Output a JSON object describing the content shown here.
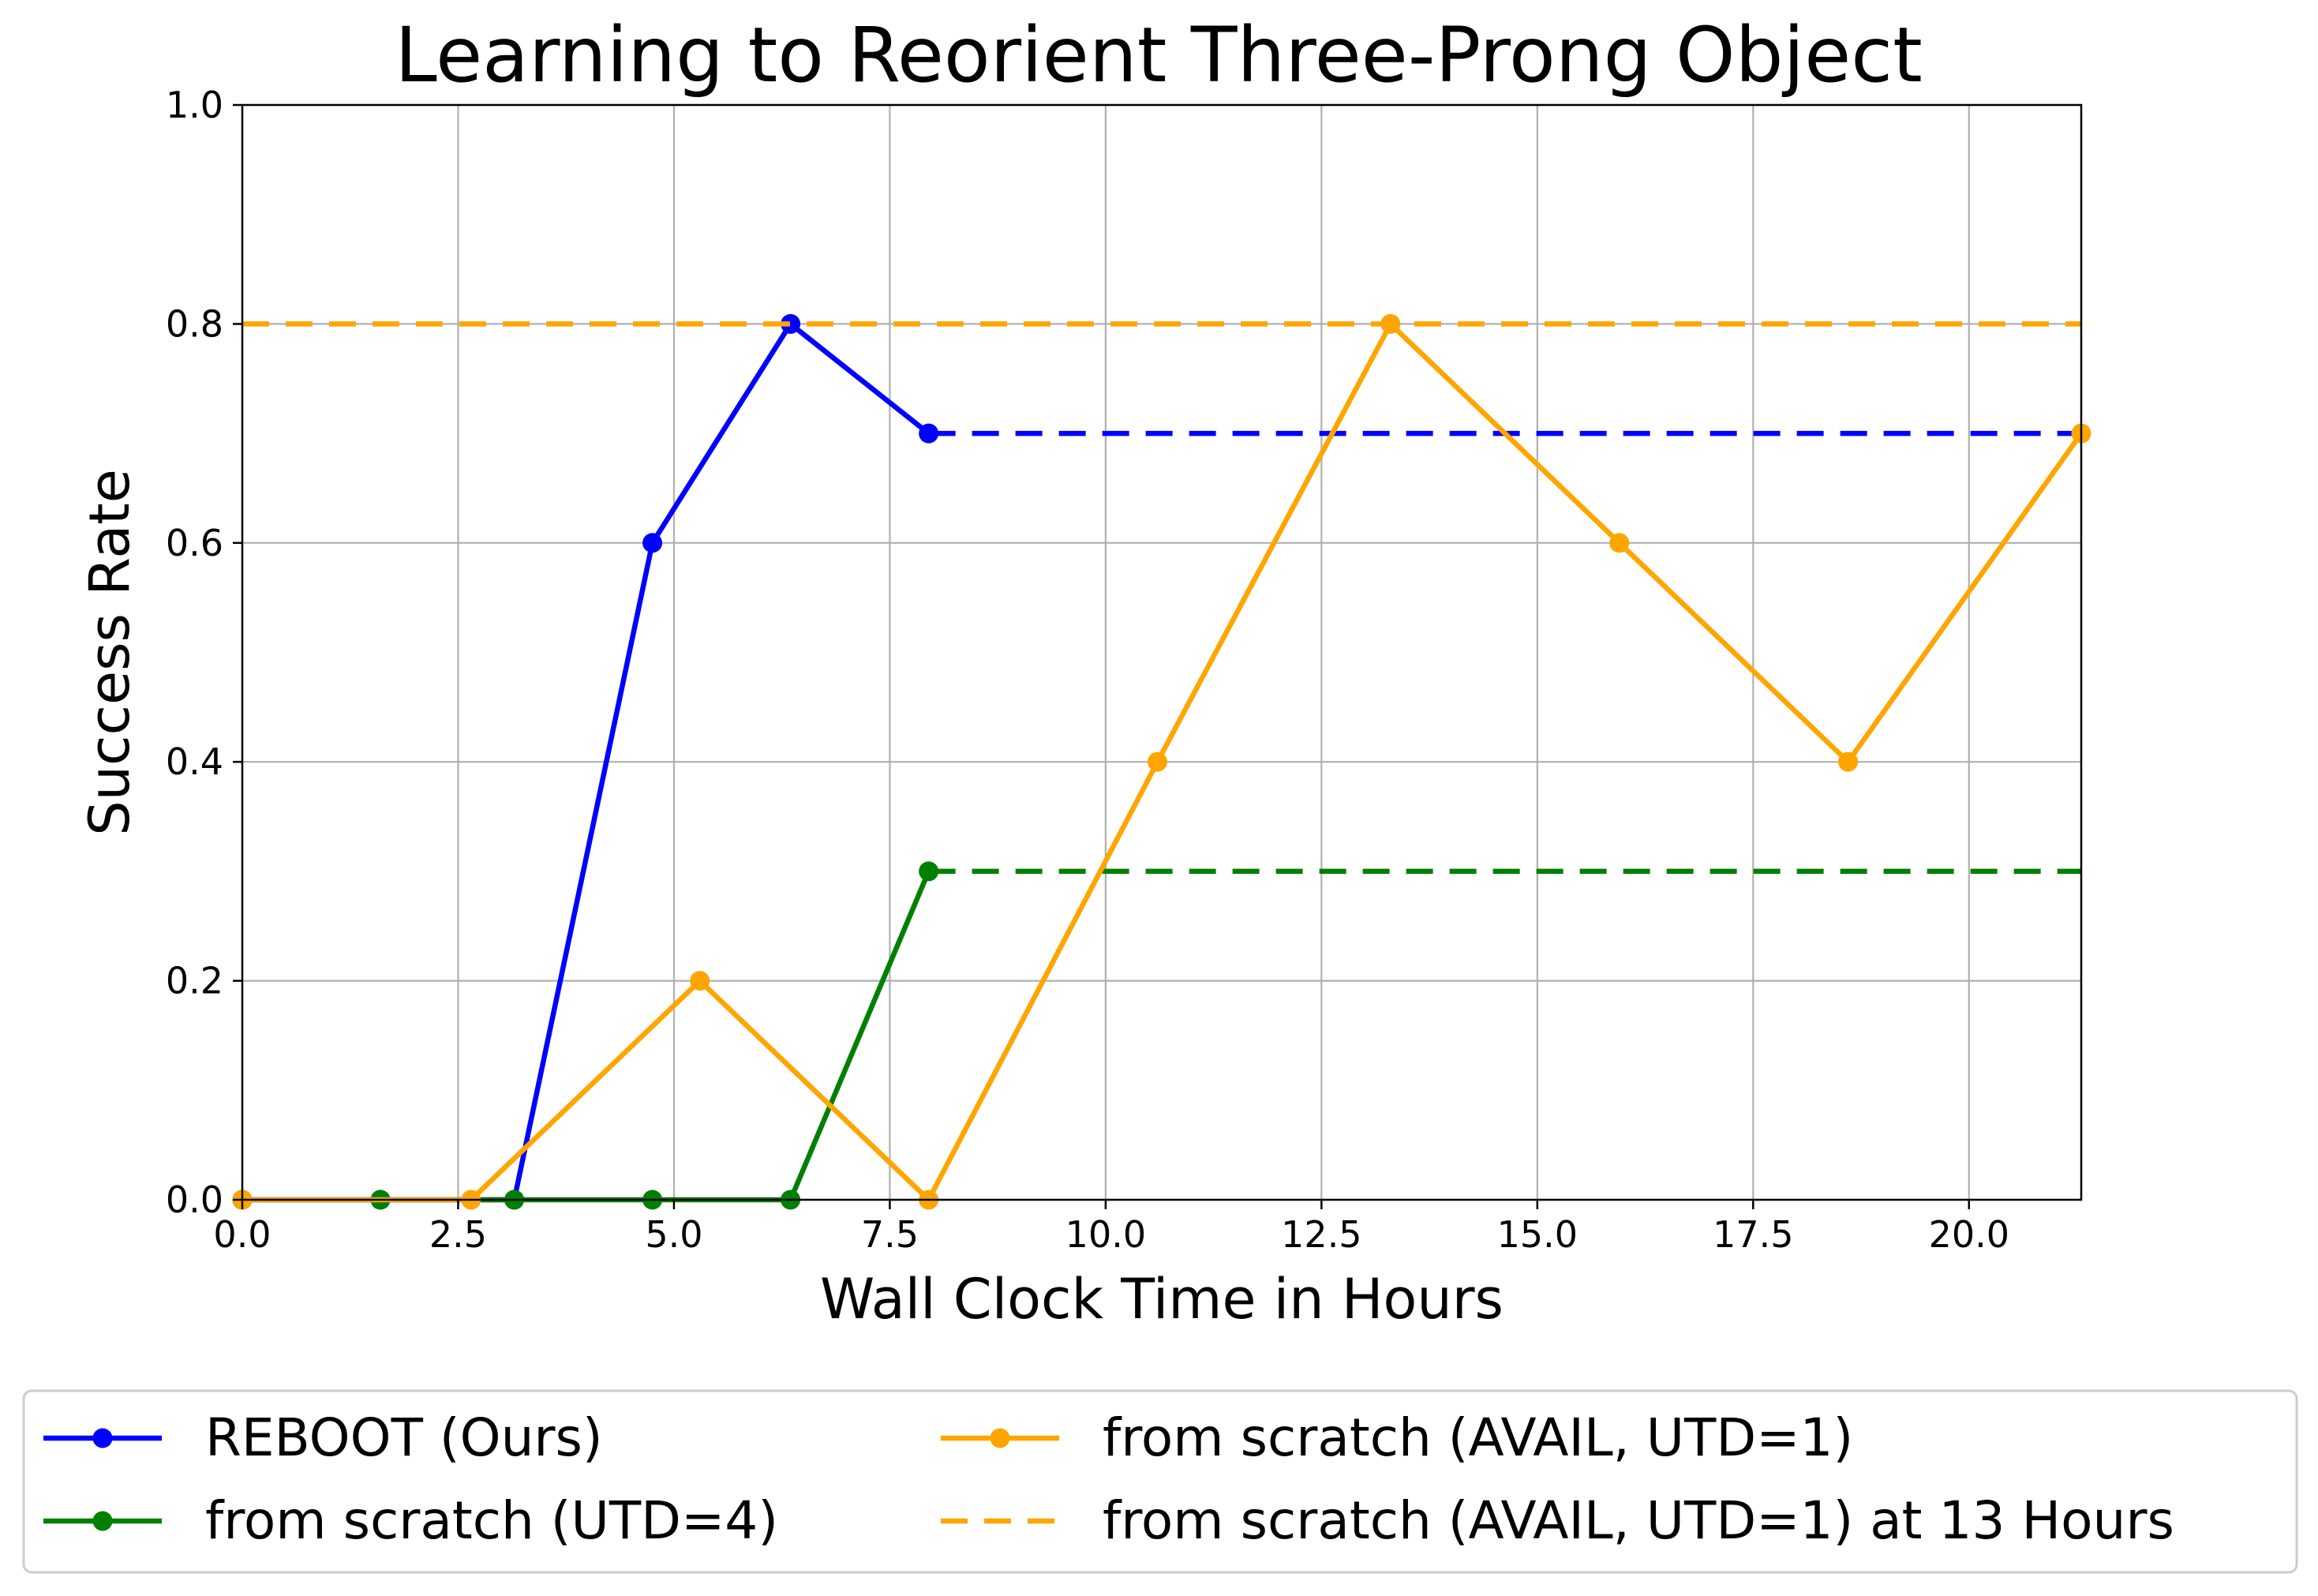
{
  "chart_data": {
    "type": "line",
    "title": "Learning to Reorient Three-Prong Object",
    "xlabel": "Wall Clock Time in Hours",
    "ylabel": "Success Rate",
    "xlim": [
      0,
      21.3
    ],
    "ylim": [
      0,
      1.0
    ],
    "x_ticks": [
      0.0,
      2.5,
      5.0,
      7.5,
      10.0,
      12.5,
      15.0,
      17.5,
      20.0
    ],
    "x_tick_labels": [
      "0.0",
      "2.5",
      "5.0",
      "7.5",
      "10.0",
      "12.5",
      "15.0",
      "17.5",
      "20.0"
    ],
    "y_ticks": [
      0.0,
      0.2,
      0.4,
      0.6,
      0.8,
      1.0
    ],
    "y_tick_labels": [
      "0.0",
      "0.2",
      "0.4",
      "0.6",
      "0.8",
      "1.0"
    ],
    "grid": true,
    "legend_position": "bottom, below plot, two columns",
    "series": [
      {
        "name": "REBOOT (Ours)",
        "color": "#0000ff",
        "style": "solid-markers",
        "x": [
          0.0,
          1.6,
          3.15,
          4.75,
          6.35,
          7.95
        ],
        "y": [
          0.0,
          0.0,
          0.0,
          0.6,
          0.8,
          0.7
        ],
        "extension": {
          "x": [
            7.95,
            21.3
          ],
          "y": [
            0.7,
            0.7
          ]
        }
      },
      {
        "name": "from scratch (UTD=4)",
        "color": "#008000",
        "style": "solid-markers",
        "x": [
          0.0,
          1.6,
          3.15,
          4.75,
          6.35,
          7.95
        ],
        "y": [
          0.0,
          0.0,
          0.0,
          0.0,
          0.0,
          0.3
        ],
        "extension": {
          "x": [
            7.95,
            21.3
          ],
          "y": [
            0.3,
            0.3
          ]
        }
      },
      {
        "name": "from scratch (AVAIL, UTD=1)",
        "color": "#ffa500",
        "style": "solid-markers",
        "x": [
          0.0,
          2.65,
          5.3,
          7.95,
          10.6,
          13.3,
          15.95,
          18.6,
          21.3
        ],
        "y": [
          0.0,
          0.0,
          0.2,
          0.0,
          0.4,
          0.8,
          0.6,
          0.4,
          0.7
        ]
      },
      {
        "name": "from scratch (AVAIL, UTD=1) at 13 Hours",
        "color": "#ffa500",
        "style": "dashed",
        "x": [
          0.0,
          21.3
        ],
        "y": [
          0.8,
          0.8
        ]
      }
    ]
  }
}
